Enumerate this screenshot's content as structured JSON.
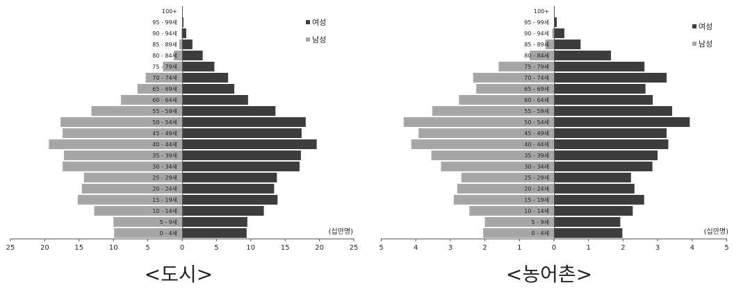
{
  "chart_data": [
    {
      "type": "bar",
      "caption": "<도시>",
      "unit_label": "(십만명)",
      "categories": [
        "0 - 4세",
        "5 - 9세",
        "10 - 14세",
        "15 - 19세",
        "20 - 24세",
        "25 - 29세",
        "30 - 34세",
        "35 - 39세",
        "40 - 44세",
        "45 - 49세",
        "50 - 54세",
        "55 - 59세",
        "60 - 64세",
        "65 - 69세",
        "70 - 74세",
        "75 - 79세",
        "80 - 84세",
        "85 - 89세",
        "90 - 94세",
        "95 - 99세",
        "100+"
      ],
      "series": [
        {
          "name": "여성",
          "color": "#3d3d3d",
          "values": [
            9.4,
            9.5,
            11.9,
            13.9,
            13.4,
            13.8,
            17.1,
            17.3,
            19.6,
            17.4,
            18.0,
            13.6,
            9.6,
            7.6,
            6.7,
            4.7,
            3.0,
            1.5,
            0.6,
            0.2,
            0.1
          ]
        },
        {
          "name": "남성",
          "color": "#a6a6a6",
          "values": [
            9.9,
            10.0,
            12.8,
            15.2,
            14.6,
            14.3,
            17.4,
            17.2,
            19.4,
            17.4,
            17.7,
            13.2,
            8.9,
            6.5,
            5.3,
            2.8,
            1.2,
            0.4,
            0.1,
            0.0,
            0.0
          ]
        }
      ],
      "xlim": [
        -25,
        25
      ],
      "xticks": [
        "25",
        "20",
        "15",
        "10",
        "5",
        "0",
        "5",
        "10",
        "15",
        "20",
        "25"
      ],
      "legend_position": "top-right"
    },
    {
      "type": "bar",
      "caption": "<농어촌>",
      "unit_label": "(십만명)",
      "categories": [
        "0 - 4세",
        "5 - 9세",
        "10 - 14세",
        "15 - 19세",
        "20 - 24세",
        "25 - 29세",
        "30 - 34세",
        "35 - 39세",
        "40 - 44세",
        "45 - 49세",
        "50 - 54세",
        "55 - 59세",
        "60 - 64세",
        "65 - 69세",
        "70 - 74세",
        "75 - 79세",
        "80 - 84세",
        "85 - 89세",
        "90 - 94세",
        "95 - 99세",
        "100+"
      ],
      "series": [
        {
          "name": "여성",
          "color": "#3d3d3d",
          "values": [
            1.98,
            1.92,
            2.28,
            2.61,
            2.33,
            2.23,
            2.85,
            3.0,
            3.31,
            3.26,
            3.93,
            3.42,
            2.86,
            2.65,
            3.26,
            2.62,
            1.65,
            0.77,
            0.3,
            0.08,
            0.02
          ]
        },
        {
          "name": "남성",
          "color": "#a6a6a6",
          "values": [
            2.05,
            2.0,
            2.45,
            2.9,
            2.8,
            2.68,
            3.27,
            3.55,
            4.13,
            3.92,
            4.35,
            3.52,
            2.75,
            2.25,
            2.34,
            1.6,
            0.7,
            0.25,
            0.05,
            0.0,
            0.0
          ]
        }
      ],
      "xlim": [
        -5,
        5
      ],
      "xticks": [
        "5",
        "4",
        "3",
        "2",
        "1",
        "0",
        "1",
        "2",
        "3",
        "4",
        "5"
      ],
      "legend_position": "top-right"
    }
  ]
}
